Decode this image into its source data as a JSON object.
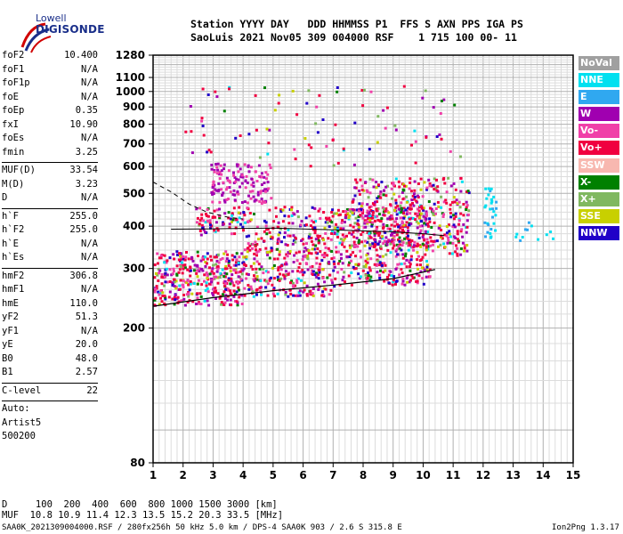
{
  "logo": {
    "top": "Lowell",
    "bottom": "DIGISONDE"
  },
  "header": {
    "line1": "Station YYYY DAY   DDD HHMMSS P1  FFS S AXN PPS IGA PS",
    "line2": "SaoLuis 2021 Nov05 309 004000 RSF    1 715 100 00- 11"
  },
  "params": [
    {
      "label": "foF2",
      "value": "10.400"
    },
    {
      "label": "foF1",
      "value": "N/A"
    },
    {
      "label": "foF1p",
      "value": "N/A"
    },
    {
      "label": "foE",
      "value": "N/A"
    },
    {
      "label": "foEp",
      "value": "0.35"
    },
    {
      "label": "fxI",
      "value": "10.90"
    },
    {
      "label": "foEs",
      "value": "N/A"
    },
    {
      "label": "fmin",
      "value": "3.25"
    },
    {
      "sep": true
    },
    {
      "label": "MUF(D)",
      "value": "33.54"
    },
    {
      "label": "M(D)",
      "value": "3.23"
    },
    {
      "label": "D",
      "value": "N/A"
    },
    {
      "sep": true
    },
    {
      "label": "h`F",
      "value": "255.0"
    },
    {
      "label": "h`F2",
      "value": "255.0"
    },
    {
      "label": "h`E",
      "value": "N/A"
    },
    {
      "label": "h`Es",
      "value": "N/A"
    },
    {
      "sep": true
    },
    {
      "label": "hmF2",
      "value": "306.8"
    },
    {
      "label": "hmF1",
      "value": "N/A"
    },
    {
      "label": "hmE",
      "value": "110.0"
    },
    {
      "label": "yF2",
      "value": "51.3"
    },
    {
      "label": "yF1",
      "value": "N/A"
    },
    {
      "label": "yE",
      "value": "20.0"
    },
    {
      "label": "B0",
      "value": "48.0"
    },
    {
      "label": "B1",
      "value": "2.57"
    },
    {
      "sep": true
    },
    {
      "label": "C-level",
      "value": "22"
    },
    {
      "sep": true
    },
    {
      "label": "Auto:",
      "value": ""
    },
    {
      "label": "Artist5",
      "value": ""
    },
    {
      "label": "500200",
      "value": ""
    }
  ],
  "legend": [
    {
      "label": "NoVal",
      "color": "#a0a0a0"
    },
    {
      "label": "NNE",
      "color": "#00e0f0"
    },
    {
      "label": "E",
      "color": "#30a8f0"
    },
    {
      "label": "W",
      "color": "#a000b0"
    },
    {
      "label": "Vo-",
      "color": "#f040a8"
    },
    {
      "label": "Vo+",
      "color": "#f00040"
    },
    {
      "label": "SSW",
      "color": "#f8b8b0"
    },
    {
      "label": "X-",
      "color": "#008000"
    },
    {
      "label": "X+",
      "color": "#80b860"
    },
    {
      "label": "SSE",
      "color": "#c8d000"
    },
    {
      "label": "NNW",
      "color": "#2000c8"
    }
  ],
  "footer": {
    "d_line": "D     100  200  400  600  800 1000 1500 3000 [km]",
    "muf_line": "MUF  10.8 10.9 11.4 12.3 13.5 15.2 20.3 33.5 [MHz]",
    "file_line": "SAA0K_2021309004000.RSF / 280fx256h 50 kHz 5.0 km / DPS-4 SAA0K 903 / 2.6 S 315.8 E",
    "version": "Ion2Png 1.3.17"
  },
  "chart_data": {
    "type": "scatter",
    "x_ticks": [
      "1",
      "2",
      "3",
      "4",
      "5",
      "6",
      "7",
      "8",
      "9",
      "10",
      "11",
      "12",
      "13",
      "14",
      "15"
    ],
    "y_ticks": [
      "80",
      "200",
      "300",
      "400",
      "500",
      "600",
      "700",
      "800",
      "900",
      "1000",
      "1100",
      "1280"
    ],
    "xlim": [
      1,
      15
    ],
    "ylim": [
      80,
      1280
    ],
    "y_scale": "log",
    "grid": true,
    "clusters": [
      {
        "x": [
          1.0,
          4.0
        ],
        "y": [
          235,
          340
        ],
        "n": 380
      },
      {
        "x": [
          4.0,
          7.0
        ],
        "y": [
          250,
          380
        ],
        "n": 320
      },
      {
        "x": [
          7.0,
          10.2
        ],
        "y": [
          270,
          460
        ],
        "n": 420
      },
      {
        "x": [
          10.0,
          11.5
        ],
        "y": [
          330,
          560
        ],
        "n": 160
      },
      {
        "x": [
          7.6,
          10.0
        ],
        "y": [
          350,
          560
        ],
        "n": 260
      },
      {
        "x": [
          2.9,
          4.9
        ],
        "y": [
          470,
          620
        ],
        "n": 140
      },
      {
        "x": [
          2.4,
          7.0
        ],
        "y": [
          380,
          460
        ],
        "n": 170
      },
      {
        "x": [
          12.0,
          12.4
        ],
        "y": [
          360,
          530
        ],
        "n": 30
      },
      {
        "x": [
          12.5,
          14.3
        ],
        "y": [
          365,
          420
        ],
        "n": 12
      },
      {
        "x": [
          2.0,
          11.3
        ],
        "y": [
          600,
          1050
        ],
        "n": 90
      }
    ],
    "trace_lower": [
      [
        1.0,
        232
      ],
      [
        3.0,
        246
      ],
      [
        5.0,
        258
      ],
      [
        7.0,
        268
      ],
      [
        9.0,
        280
      ],
      [
        10.4,
        298
      ]
    ],
    "trace_curve": [
      [
        1.6,
        392
      ],
      [
        3.0,
        393
      ],
      [
        5.0,
        395
      ],
      [
        7.0,
        390
      ],
      [
        9.0,
        385
      ],
      [
        10.0,
        380
      ],
      [
        10.7,
        375
      ]
    ],
    "trace_dashed": [
      [
        1.0,
        540
      ],
      [
        1.6,
        505
      ],
      [
        2.2,
        465
      ],
      [
        2.8,
        440
      ],
      [
        3.5,
        425
      ],
      [
        4.0,
        420
      ]
    ]
  }
}
